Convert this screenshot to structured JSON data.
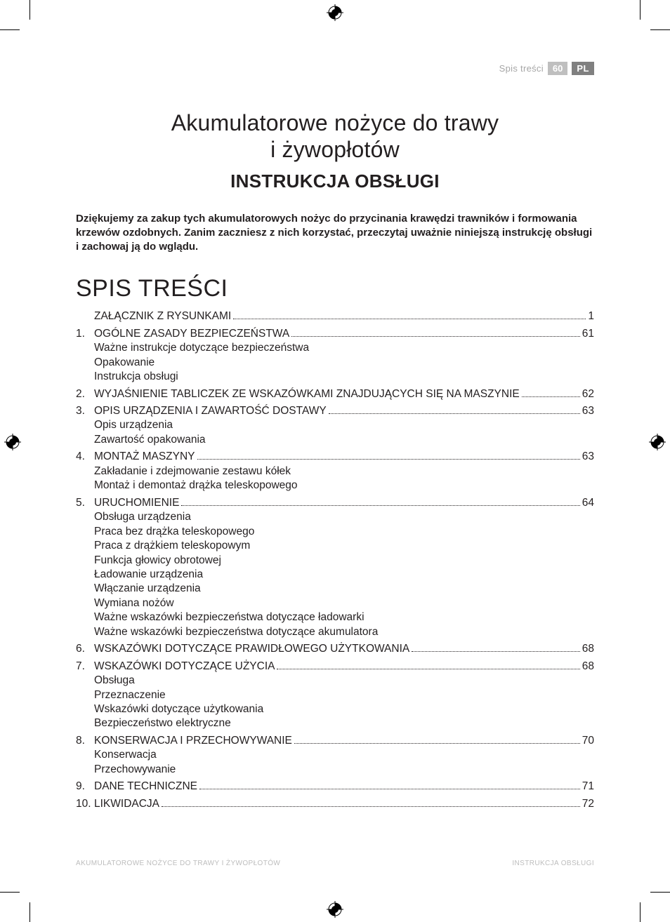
{
  "header": {
    "section_name": "Spis treści",
    "page_number": "60",
    "lang_code": "PL"
  },
  "title": {
    "line1": "Akumulatorowe nożyce do trawy",
    "line2": "i żywopłotów",
    "subtitle": "INSTRUKCJA OBSŁUGI"
  },
  "thanks": "Dziękujemy za zakup tych akumulatorowych nożyc do przycinania krawędzi trawników i formowania krzewów ozdobnych. Zanim zaczniesz z nich korzystać, przeczytaj uważnie niniejszą instrukcję obsługi i zachowaj ją do wglądu.",
  "toc_heading": "SPIS TREŚCI",
  "toc": [
    {
      "num": "",
      "label": "ZAŁĄCZNIK Z RYSUNKAMI",
      "page": "1",
      "subs": []
    },
    {
      "num": "1.",
      "label": "OGÓLNE ZASADY BEZPIECZEŃSTWA",
      "page": "61",
      "subs": [
        "Ważne instrukcje dotyczące bezpieczeństwa",
        "Opakowanie",
        "Instrukcja obsługi"
      ]
    },
    {
      "num": "2.",
      "label": "WYJAŚNIENIE TABLICZEK ZE WSKAZÓWKAMI ZNAJDUJĄCYCH SIĘ NA MASZYNIE",
      "page": "62",
      "subs": []
    },
    {
      "num": "3.",
      "label": "OPIS URZĄDZENIA I ZAWARTOŚĆ DOSTAWY",
      "page": "63",
      "subs": [
        "Opis urządzenia",
        "Zawartość opakowania"
      ]
    },
    {
      "num": "4.",
      "label": "MONTAŻ MASZYNY",
      "page": "63",
      "subs": [
        "Zakładanie i zdejmowanie zestawu kółek",
        "Montaż i demontaż drążka teleskopowego"
      ]
    },
    {
      "num": "5.",
      "label": "URUCHOMIENIE",
      "page": "64",
      "subs": [
        "Obsługa urządzenia",
        "Praca bez drążka teleskopowego",
        "Praca z drążkiem teleskopowym",
        "Funkcja głowicy obrotowej",
        "Ładowanie urządzenia",
        "Włączanie urządzenia",
        "Wymiana nożów",
        "Ważne wskazówki bezpieczeństwa dotyczące ładowarki",
        "Ważne wskazówki bezpieczeństwa dotyczące akumulatora"
      ]
    },
    {
      "num": "6.",
      "label": "WSKAZÓWKI DOTYCZĄCE PRAWIDŁOWEGO UŻYTKOWANIA",
      "page": "68",
      "subs": []
    },
    {
      "num": "7.",
      "label": "WSKAZÓWKI DOTYCZĄCE UŻYCIA",
      "page": "68",
      "subs": [
        "Obsługa",
        "Przeznaczenie",
        "Wskazówki dotyczące użytkowania",
        "Bezpieczeństwo elektryczne"
      ]
    },
    {
      "num": "8.",
      "label": "KONSERWACJA I PRZECHOWYWANIE",
      "page": "70",
      "subs": [
        "Konserwacja",
        "Przechowywanie"
      ]
    },
    {
      "num": "9.",
      "label": "DANE TECHNICZNE",
      "page": "71",
      "subs": []
    },
    {
      "num": "10.",
      "label": "LIKWIDACJA",
      "page": "72",
      "subs": []
    }
  ],
  "footer": {
    "left": "AKUMULATOROWE NOŻYCE DO TRAWY I ŻYWOPŁOTÓW",
    "right": "INSTRUKCJA OBSŁUGI"
  },
  "colors": {
    "text": "#231f20",
    "header_gray": "#a6a6a6",
    "badge_light": "#bfbfbf",
    "badge_dark": "#808080",
    "footer_gray": "#bdbdbd",
    "background": "#ffffff"
  },
  "typography": {
    "title_fontsize": 32,
    "subtitle_fontsize": 26,
    "body_fontsize": 15.5,
    "toc_heading_fontsize": 34,
    "footer_fontsize": 10
  }
}
